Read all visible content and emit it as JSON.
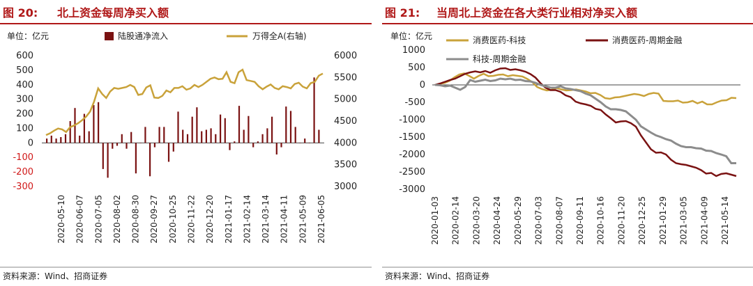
{
  "colors": {
    "title": "#b01818",
    "bar": "#7a1212",
    "index_line": "#c9a23a",
    "consumer_tech": "#c9a23a",
    "consumer_cyclical": "#7a1212",
    "tech_cyclical": "#8c8c8c",
    "negative_tick": "#d01818"
  },
  "chart_data": [
    {
      "type": "bar",
      "figure_label": "图 20:",
      "title": "北上资金每周净买入额",
      "unit_label": "单位：亿元",
      "source": "资料来源：Wind、招商证券",
      "ylim": [
        -300,
        600
      ],
      "yticks": [
        "600",
        "500",
        "400",
        "300",
        "200",
        "100",
        "0",
        "-100",
        "-200",
        "-300"
      ],
      "y2lim": [
        3000,
        6000
      ],
      "y2ticks": [
        "6000",
        "5500",
        "5000",
        "4500",
        "4000",
        "3500",
        "3000"
      ],
      "xticks": [
        "2020-05-10",
        "2020-06-07",
        "2020-07-05",
        "2020-08-02",
        "2020-08-30",
        "2020-09-27",
        "2020-10-25",
        "2020-11-22",
        "2020-12-20",
        "2021-01-17",
        "2021-02-14",
        "2021-03-14",
        "2021-04-11",
        "2021-05-09",
        "2021-06-05"
      ],
      "series": [
        {
          "name": "陆股通净流入",
          "kind": "bar",
          "axis": "left",
          "values": [
            30,
            50,
            30,
            40,
            60,
            150,
            240,
            50,
            200,
            80,
            260,
            280,
            -180,
            -240,
            -40,
            -20,
            60,
            -40,
            75,
            -210,
            0,
            110,
            -230,
            -30,
            110,
            110,
            -130,
            -60,
            215,
            90,
            60,
            180,
            245,
            80,
            90,
            100,
            60,
            195,
            170,
            -50,
            10,
            255,
            90,
            185,
            -30,
            10,
            60,
            100,
            180,
            -80,
            -30,
            250,
            220,
            110,
            0,
            30,
            0,
            450,
            90
          ]
        },
        {
          "name": "万得全A(右轴)",
          "kind": "line",
          "axis": "right",
          "values": [
            4180,
            4220,
            4280,
            4330,
            4310,
            4250,
            4360,
            4400,
            4450,
            4520,
            4600,
            4720,
            4950,
            5250,
            5120,
            5030,
            5180,
            5260,
            5240,
            5260,
            5280,
            5330,
            5280,
            5100,
            5120,
            5270,
            5320,
            5040,
            5030,
            5080,
            5200,
            5160,
            5260,
            5260,
            5300,
            5220,
            5250,
            5330,
            5280,
            5330,
            5400,
            5470,
            5500,
            5460,
            5470,
            5620,
            5400,
            5370,
            5620,
            5680,
            5440,
            5420,
            5400,
            5300,
            5230,
            5290,
            5340,
            5260,
            5230,
            5300,
            5280,
            5250,
            5350,
            5380,
            5290,
            5250,
            5370,
            5400,
            5540,
            5590
          ]
        }
      ]
    },
    {
      "type": "line",
      "figure_label": "图 21:",
      "title": "当周北上资金在各大类行业相对净买入额",
      "unit_label": "单位：亿元",
      "source": "资料来源：Wind、招商证券",
      "ylim": [
        -3000,
        1000
      ],
      "yticks": [
        "1000",
        "500",
        "0",
        "-500",
        "-1000",
        "-1500",
        "-2000",
        "-2500",
        "-3000"
      ],
      "xticks": [
        "2020-01-03",
        "2020-02-14",
        "2020-03-20",
        "2020-04-24",
        "2020-05-29",
        "2020-07-03",
        "2020-08-07",
        "2020-09-11",
        "2020-10-16",
        "2020-11-20",
        "2020-12-25",
        "2021-01-29",
        "2021-03-05",
        "2021-04-09",
        "2021-05-14"
      ],
      "series": [
        {
          "name": "消费医药-科技",
          "values": [
            0,
            30,
            60,
            120,
            220,
            300,
            330,
            260,
            180,
            260,
            320,
            250,
            260,
            290,
            300,
            250,
            280,
            260,
            240,
            170,
            80,
            -60,
            -120,
            -160,
            -140,
            -90,
            -130,
            -160,
            -150,
            -130,
            -160,
            -190,
            -240,
            -230,
            -290,
            -380,
            -400,
            -360,
            -350,
            -320,
            -290,
            -260,
            -280,
            -320,
            -260,
            -230,
            -250,
            -460,
            -470,
            -470,
            -450,
            -510,
            -500,
            -460,
            -530,
            -480,
            -560,
            -560,
            -500,
            -450,
            -440,
            -370,
            -380
          ]
        },
        {
          "name": "消费医药-周期金融",
          "values": [
            0,
            40,
            90,
            140,
            180,
            250,
            320,
            360,
            390,
            360,
            400,
            350,
            420,
            470,
            480,
            430,
            450,
            420,
            380,
            310,
            210,
            50,
            -80,
            -150,
            -150,
            -200,
            -300,
            -350,
            -480,
            -530,
            -560,
            -600,
            -690,
            -720,
            -850,
            -960,
            -1080,
            -1050,
            -1040,
            -1100,
            -1200,
            -1450,
            -1650,
            -1850,
            -1950,
            -1940,
            -2000,
            -2150,
            -2250,
            -2280,
            -2300,
            -2340,
            -2380,
            -2450,
            -2550,
            -2530,
            -2620,
            -2560,
            -2540,
            -2580,
            -2620
          ]
        },
        {
          "name": "科技-周期金融",
          "values": [
            0,
            -10,
            -40,
            -20,
            -80,
            -140,
            -60,
            140,
            90,
            120,
            150,
            110,
            130,
            180,
            160,
            180,
            140,
            150,
            110,
            100,
            60,
            0,
            -40,
            -80,
            -80,
            -40,
            -100,
            -120,
            -150,
            -180,
            -250,
            -300,
            -400,
            -500,
            -620,
            -700,
            -700,
            -720,
            -760,
            -880,
            -1000,
            -1190,
            -1280,
            -1370,
            -1450,
            -1500,
            -1560,
            -1600,
            -1690,
            -1760,
            -1790,
            -1790,
            -1820,
            -1830,
            -1890,
            -1900,
            -1960,
            -2000,
            -2050,
            -2250,
            -2250
          ]
        }
      ]
    }
  ]
}
